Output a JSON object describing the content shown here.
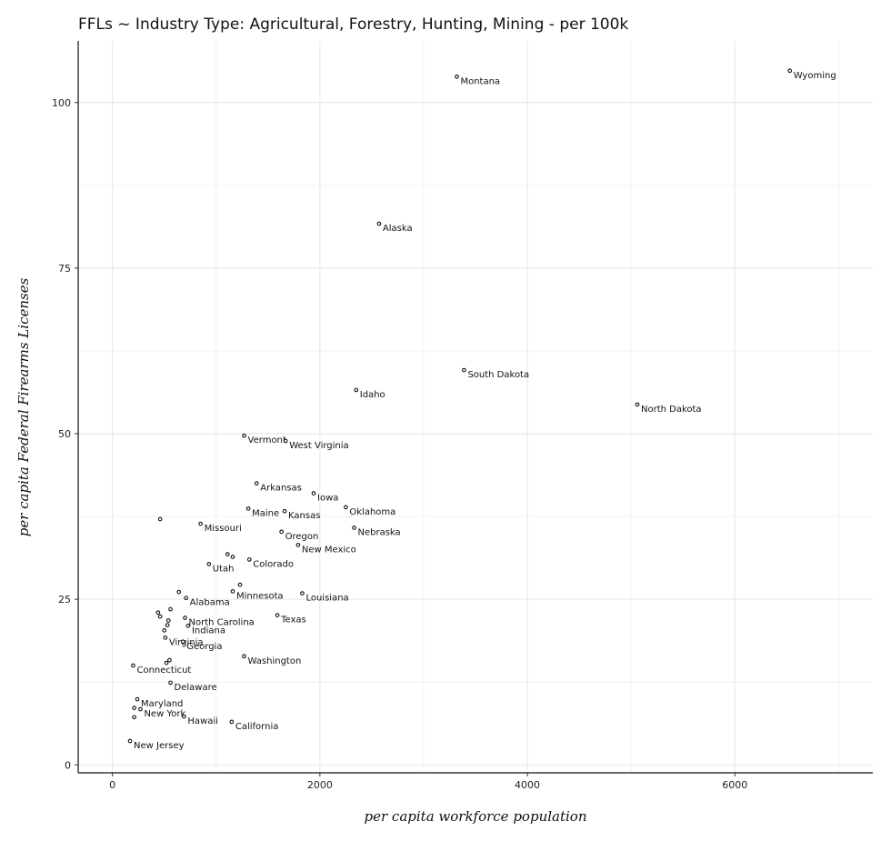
{
  "chart_data": {
    "type": "scatter",
    "title": "FFLs ~ Industry Type: Agricultural, Forestry, Hunting, Mining - per 100k",
    "xlabel": "per capita workforce population",
    "ylabel": "per capita Federal Firearms Licenses",
    "xlim": [
      -330,
      7330
    ],
    "ylim": [
      -1.2,
      109.3
    ],
    "xticks": [
      0,
      2000,
      4000,
      6000
    ],
    "yticks": [
      0,
      25,
      50,
      75,
      100
    ],
    "grid": true,
    "points": [
      {
        "x": 6530,
        "y": 104.8,
        "label": "Wyoming"
      },
      {
        "x": 3320,
        "y": 103.9,
        "label": "Montana"
      },
      {
        "x": 2570,
        "y": 81.7,
        "label": "Alaska"
      },
      {
        "x": 3390,
        "y": 59.6,
        "label": "South Dakota"
      },
      {
        "x": 2350,
        "y": 56.6,
        "label": "Idaho"
      },
      {
        "x": 5060,
        "y": 54.4,
        "label": "North Dakota"
      },
      {
        "x": 1270,
        "y": 49.7,
        "label": "Vermont"
      },
      {
        "x": 1670,
        "y": 48.9,
        "label": "West Virginia"
      },
      {
        "x": 1390,
        "y": 42.5,
        "label": "Arkansas"
      },
      {
        "x": 1940,
        "y": 41.0,
        "label": "Iowa"
      },
      {
        "x": 2250,
        "y": 38.9,
        "label": "Oklahoma"
      },
      {
        "x": 1310,
        "y": 38.7,
        "label": "Maine"
      },
      {
        "x": 1660,
        "y": 38.3,
        "label": "Kansas"
      },
      {
        "x": 460,
        "y": 37.1,
        "label": ""
      },
      {
        "x": 850,
        "y": 36.4,
        "label": "Missouri"
      },
      {
        "x": 2330,
        "y": 35.8,
        "label": "Nebraska"
      },
      {
        "x": 1630,
        "y": 35.2,
        "label": "Oregon"
      },
      {
        "x": 1790,
        "y": 33.2,
        "label": "New Mexico"
      },
      {
        "x": 1110,
        "y": 31.8,
        "label": ""
      },
      {
        "x": 1160,
        "y": 31.4,
        "label": ""
      },
      {
        "x": 1320,
        "y": 31.0,
        "label": "Colorado"
      },
      {
        "x": 930,
        "y": 30.3,
        "label": "Utah"
      },
      {
        "x": 1230,
        "y": 27.2,
        "label": ""
      },
      {
        "x": 1160,
        "y": 26.2,
        "label": "Minnesota"
      },
      {
        "x": 1830,
        "y": 25.9,
        "label": "Louisiana"
      },
      {
        "x": 640,
        "y": 26.1,
        "label": ""
      },
      {
        "x": 710,
        "y": 25.2,
        "label": "Alabama"
      },
      {
        "x": 560,
        "y": 23.5,
        "label": ""
      },
      {
        "x": 440,
        "y": 23.0,
        "label": ""
      },
      {
        "x": 460,
        "y": 22.4,
        "label": ""
      },
      {
        "x": 1590,
        "y": 22.6,
        "label": "Texas"
      },
      {
        "x": 700,
        "y": 22.2,
        "label": "North Carolina"
      },
      {
        "x": 540,
        "y": 21.8,
        "label": ""
      },
      {
        "x": 730,
        "y": 21.0,
        "label": "Indiana"
      },
      {
        "x": 530,
        "y": 21.1,
        "label": ""
      },
      {
        "x": 500,
        "y": 20.3,
        "label": ""
      },
      {
        "x": 510,
        "y": 19.2,
        "label": "Virginia"
      },
      {
        "x": 680,
        "y": 18.6,
        "label": "Georgia"
      },
      {
        "x": 1270,
        "y": 16.4,
        "label": "Washington"
      },
      {
        "x": 550,
        "y": 15.8,
        "label": ""
      },
      {
        "x": 520,
        "y": 15.4,
        "label": ""
      },
      {
        "x": 200,
        "y": 15.0,
        "label": "Connecticut"
      },
      {
        "x": 560,
        "y": 12.4,
        "label": "Delaware"
      },
      {
        "x": 240,
        "y": 9.9,
        "label": "Maryland"
      },
      {
        "x": 210,
        "y": 8.6,
        "label": ""
      },
      {
        "x": 270,
        "y": 8.4,
        "label": "New York"
      },
      {
        "x": 210,
        "y": 7.2,
        "label": ""
      },
      {
        "x": 690,
        "y": 7.3,
        "label": "Hawaii"
      },
      {
        "x": 1150,
        "y": 6.5,
        "label": "California"
      },
      {
        "x": 170,
        "y": 3.6,
        "label": "New Jersey"
      }
    ]
  }
}
